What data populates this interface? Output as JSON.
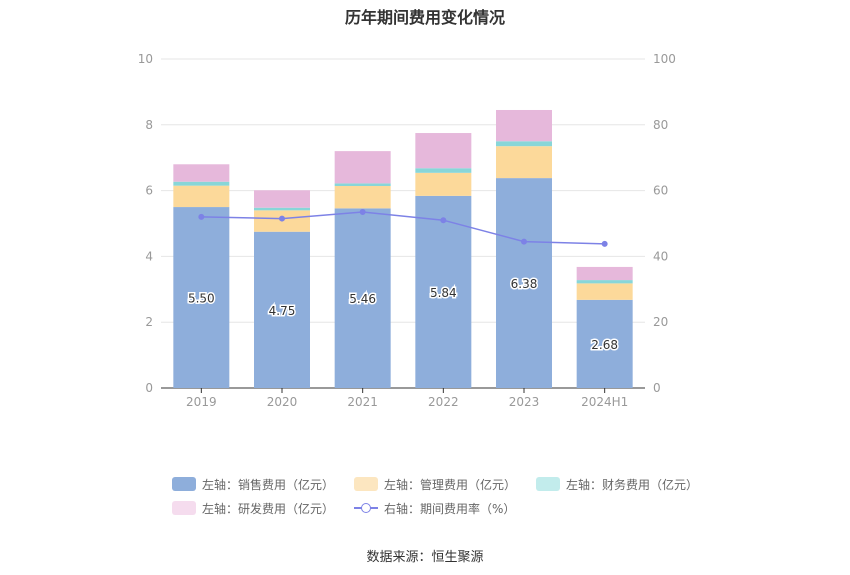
{
  "chart_data": {
    "type": "bar",
    "title": "历年期间费用变化情况",
    "categories": [
      "2019",
      "2020",
      "2021",
      "2022",
      "2023",
      "2024H1"
    ],
    "y_left": {
      "min": 0,
      "max": 10,
      "ticks": [
        "0",
        "2",
        "4",
        "6",
        "8",
        "10"
      ]
    },
    "y_right": {
      "min": 0,
      "max": 100,
      "ticks": [
        "0",
        "20",
        "40",
        "60",
        "80",
        "100"
      ]
    },
    "series": [
      {
        "name": "左轴：销售费用（亿元）",
        "axis": "left",
        "stack": "total",
        "color": "#8eaedb",
        "values": [
          5.5,
          4.75,
          5.46,
          5.84,
          6.38,
          2.68
        ],
        "labels": [
          "5.50",
          "4.75",
          "5.46",
          "5.84",
          "6.38",
          "2.68"
        ]
      },
      {
        "name": "左轴：管理费用（亿元）",
        "axis": "left",
        "stack": "total",
        "color": "#fcd99a",
        "values": [
          0.65,
          0.65,
          0.68,
          0.7,
          0.97,
          0.5
        ]
      },
      {
        "name": "左轴：财务费用（亿元）",
        "axis": "left",
        "stack": "total",
        "color": "#88d6d8",
        "values": [
          0.12,
          0.08,
          0.08,
          0.14,
          0.15,
          0.1
        ]
      },
      {
        "name": "左轴：研发费用（亿元）",
        "axis": "left",
        "stack": "total",
        "color": "#e6b8db",
        "values": [
          0.53,
          0.53,
          0.98,
          1.07,
          0.95,
          0.4
        ]
      },
      {
        "name": "右轴：期间费用率（%）",
        "axis": "right",
        "type": "line",
        "color": "#7d82e6",
        "values": [
          52.0,
          51.5,
          53.5,
          51.0,
          44.5,
          43.8
        ]
      }
    ],
    "legend_position": "bottom",
    "grid": true
  },
  "legend": {
    "rows": [
      [
        {
          "label": "左轴：销售费用（亿元）",
          "color": "#8eaedb",
          "kind": "bar"
        },
        {
          "label": "左轴：管理费用（亿元）",
          "color": "#fce6c0",
          "kind": "bar"
        },
        {
          "label": "左轴：财务费用（亿元）",
          "color": "#c2ecec",
          "kind": "bar"
        }
      ],
      [
        {
          "label": "左轴：研发费用（亿元）",
          "color": "#f5dcee",
          "kind": "bar"
        },
        {
          "label": "右轴：期间费用率（%）",
          "color": "#7d82e6",
          "kind": "line"
        }
      ]
    ]
  },
  "footer": {
    "source": "数据来源：恒生聚源"
  }
}
